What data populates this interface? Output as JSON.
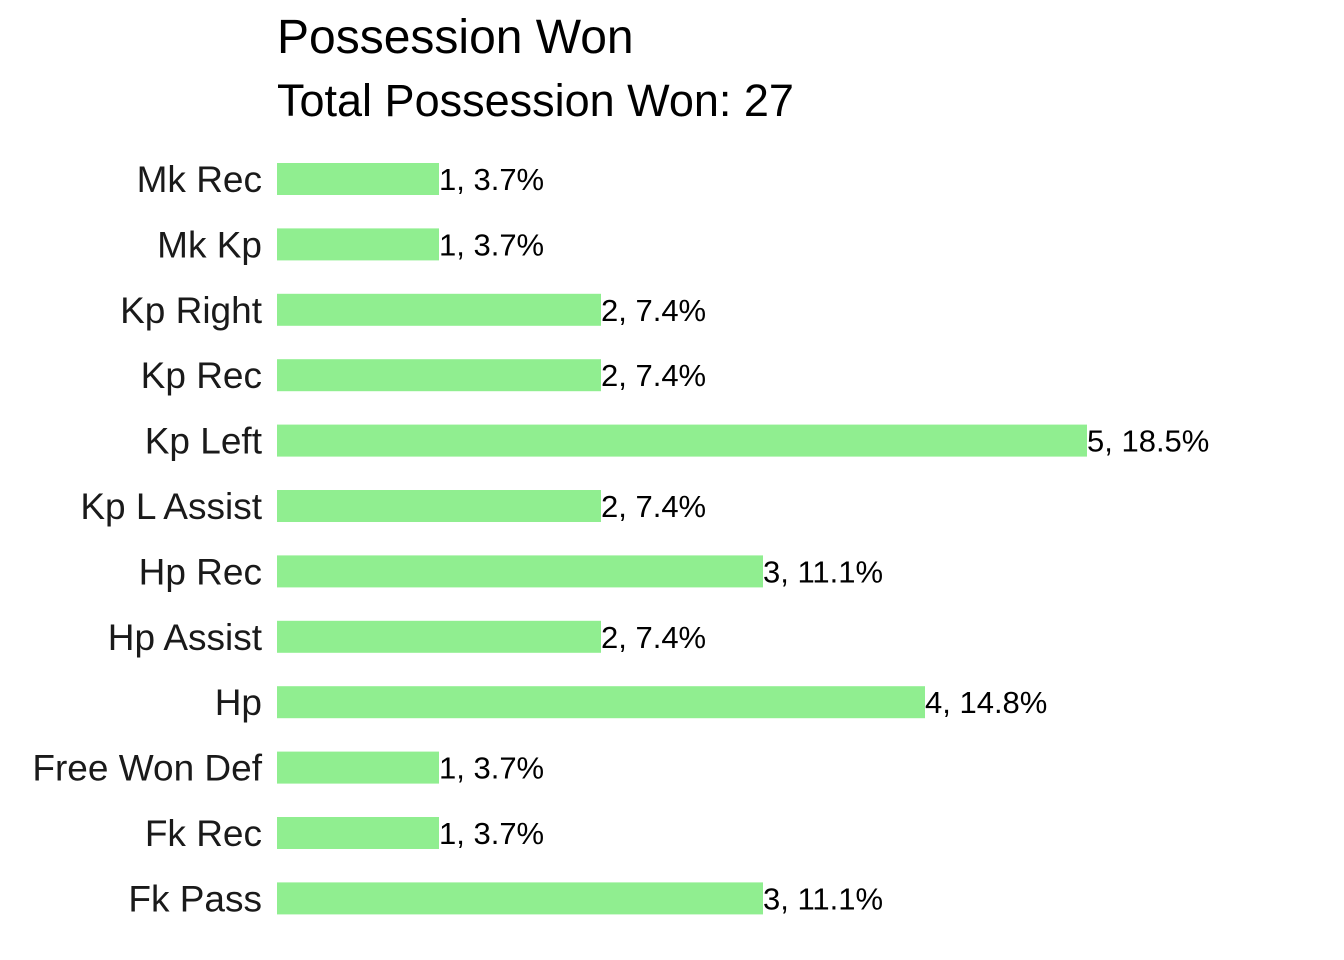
{
  "chart_data": {
    "type": "bar",
    "orientation": "horizontal",
    "title": "Possession Won",
    "subtitle": "Total Possession Won: 27",
    "xlabel": "",
    "ylabel": "",
    "grid": false,
    "xlim": [
      0,
      5
    ],
    "bar_color": "#90EE90",
    "categories": [
      "Mk Rec",
      "Mk Kp",
      "Kp Right",
      "Kp Rec",
      "Kp Left",
      "Kp L Assist",
      "Hp Rec",
      "Hp Assist",
      "Hp",
      "Free Won Def",
      "Fk Rec",
      "Fk Pass"
    ],
    "values": [
      1,
      1,
      2,
      2,
      5,
      2,
      3,
      2,
      4,
      1,
      1,
      3
    ],
    "data_labels": [
      "1, 3.7%",
      "1, 3.7%",
      "2, 7.4%",
      "2, 7.4%",
      "5, 18.5%",
      "2, 7.4%",
      "3, 11.1%",
      "2, 7.4%",
      "4, 14.8%",
      "1, 3.7%",
      "1, 3.7%",
      "3, 11.1%"
    ]
  }
}
